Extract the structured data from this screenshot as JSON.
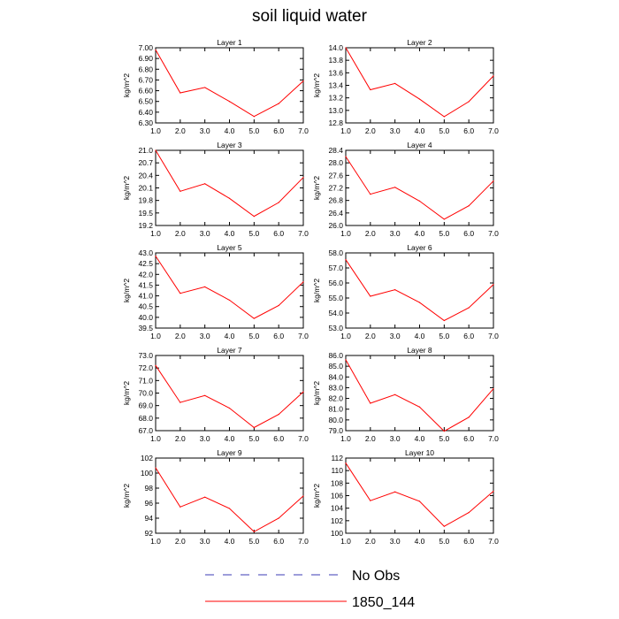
{
  "figure": {
    "title": "soil liquid water",
    "colors": {
      "series": "#ff0000",
      "legend_obs": "#3b3bb4",
      "axis": "#000000"
    }
  },
  "legend": [
    {
      "label": "No Obs",
      "style": "dashed",
      "color": "#3b3bb4"
    },
    {
      "label": "1850_144",
      "style": "solid",
      "color": "#ff0000"
    }
  ],
  "chart_data": [
    {
      "type": "line",
      "title": "Layer 1",
      "ylabel": "kg/m^2",
      "x": [
        1,
        2,
        3,
        4,
        5,
        6,
        7
      ],
      "xlim": [
        1,
        7
      ],
      "xticks": [
        "1.0",
        "2.0",
        "3.0",
        "4.0",
        "5.0",
        "6.0",
        "7.0"
      ],
      "ylim": [
        6.3,
        7.0
      ],
      "yticks": [
        "6.30",
        "6.40",
        "6.50",
        "6.60",
        "6.70",
        "6.80",
        "6.90",
        "7.00"
      ],
      "series": [
        {
          "name": "1850_144",
          "values": [
            6.98,
            6.58,
            6.63,
            6.5,
            6.36,
            6.48,
            6.69
          ]
        }
      ]
    },
    {
      "type": "line",
      "title": "Layer 2",
      "ylabel": "kg/m^2",
      "x": [
        1,
        2,
        3,
        4,
        5,
        6,
        7
      ],
      "xlim": [
        1,
        7
      ],
      "xticks": [
        "1.0",
        "2.0",
        "3.0",
        "4.0",
        "5.0",
        "6.0",
        "7.0"
      ],
      "ylim": [
        12.8,
        14.0
      ],
      "yticks": [
        "12.8",
        "13.0",
        "13.2",
        "13.4",
        "13.6",
        "13.8",
        "14.0"
      ],
      "series": [
        {
          "name": "1850_144",
          "values": [
            14.0,
            13.33,
            13.43,
            13.18,
            12.9,
            13.14,
            13.55
          ]
        }
      ]
    },
    {
      "type": "line",
      "title": "Layer 3",
      "ylabel": "kg/m^2",
      "x": [
        1,
        2,
        3,
        4,
        5,
        6,
        7
      ],
      "xlim": [
        1,
        7
      ],
      "xticks": [
        "1.0",
        "2.0",
        "3.0",
        "4.0",
        "5.0",
        "6.0",
        "7.0"
      ],
      "ylim": [
        19.2,
        21.0
      ],
      "yticks": [
        "19.2",
        "19.5",
        "19.8",
        "20.1",
        "20.4",
        "20.7",
        "21.0"
      ],
      "series": [
        {
          "name": "1850_144",
          "values": [
            21.0,
            20.02,
            20.2,
            19.85,
            19.42,
            19.75,
            20.35
          ]
        }
      ]
    },
    {
      "type": "line",
      "title": "Layer 4",
      "ylabel": "kg/m^2",
      "x": [
        1,
        2,
        3,
        4,
        5,
        6,
        7
      ],
      "xlim": [
        1,
        7
      ],
      "xticks": [
        "1.0",
        "2.0",
        "3.0",
        "4.0",
        "5.0",
        "6.0",
        "7.0"
      ],
      "ylim": [
        26.0,
        28.4
      ],
      "yticks": [
        "26.0",
        "26.4",
        "26.8",
        "27.2",
        "27.6",
        "28.0",
        "28.4"
      ],
      "series": [
        {
          "name": "1850_144",
          "values": [
            28.2,
            27.0,
            27.22,
            26.78,
            26.2,
            26.63,
            27.42
          ]
        }
      ]
    },
    {
      "type": "line",
      "title": "Layer 5",
      "ylabel": "kg/m^2",
      "x": [
        1,
        2,
        3,
        4,
        5,
        6,
        7
      ],
      "xlim": [
        1,
        7
      ],
      "xticks": [
        "1.0",
        "2.0",
        "3.0",
        "4.0",
        "5.0",
        "6.0",
        "7.0"
      ],
      "ylim": [
        39.5,
        43.0
      ],
      "yticks": [
        "39.5",
        "40.0",
        "40.5",
        "41.0",
        "41.5",
        "42.0",
        "42.5",
        "43.0"
      ],
      "series": [
        {
          "name": "1850_144",
          "values": [
            42.85,
            41.12,
            41.42,
            40.8,
            39.95,
            40.55,
            41.65
          ]
        }
      ]
    },
    {
      "type": "line",
      "title": "Layer 6",
      "ylabel": "kg/m^2",
      "x": [
        1,
        2,
        3,
        4,
        5,
        6,
        7
      ],
      "xlim": [
        1,
        7
      ],
      "xticks": [
        "1.0",
        "2.0",
        "3.0",
        "4.0",
        "5.0",
        "6.0",
        "7.0"
      ],
      "ylim": [
        53.0,
        58.0
      ],
      "yticks": [
        "53.0",
        "54.0",
        "55.0",
        "56.0",
        "57.0",
        "58.0"
      ],
      "series": [
        {
          "name": "1850_144",
          "values": [
            57.55,
            55.12,
            55.55,
            54.7,
            53.5,
            54.35,
            55.9
          ]
        }
      ]
    },
    {
      "type": "line",
      "title": "Layer 7",
      "ylabel": "kg/m^2",
      "x": [
        1,
        2,
        3,
        4,
        5,
        6,
        7
      ],
      "xlim": [
        1,
        7
      ],
      "xticks": [
        "1.0",
        "2.0",
        "3.0",
        "4.0",
        "5.0",
        "6.0",
        "7.0"
      ],
      "ylim": [
        67.0,
        73.0
      ],
      "yticks": [
        "67.0",
        "68.0",
        "69.0",
        "70.0",
        "71.0",
        "72.0",
        "73.0"
      ],
      "series": [
        {
          "name": "1850_144",
          "values": [
            72.2,
            69.25,
            69.8,
            68.8,
            67.25,
            68.3,
            70.1
          ]
        }
      ]
    },
    {
      "type": "line",
      "title": "Layer 8",
      "ylabel": "kg/m^2",
      "x": [
        1,
        2,
        3,
        4,
        5,
        6,
        7
      ],
      "xlim": [
        1,
        7
      ],
      "xticks": [
        "1.0",
        "2.0",
        "3.0",
        "4.0",
        "5.0",
        "6.0",
        "7.0"
      ],
      "ylim": [
        79.0,
        86.0
      ],
      "yticks": [
        "79.0",
        "80.0",
        "81.0",
        "82.0",
        "83.0",
        "84.0",
        "85.0",
        "86.0"
      ],
      "series": [
        {
          "name": "1850_144",
          "values": [
            85.6,
            81.55,
            82.35,
            81.2,
            78.95,
            80.25,
            82.9
          ]
        }
      ]
    },
    {
      "type": "line",
      "title": "Layer 9",
      "ylabel": "kg/m^2",
      "x": [
        1,
        2,
        3,
        4,
        5,
        6,
        7
      ],
      "xlim": [
        1,
        7
      ],
      "xticks": [
        "1.0",
        "2.0",
        "3.0",
        "4.0",
        "5.0",
        "6.0",
        "7.0"
      ],
      "ylim": [
        92,
        102
      ],
      "yticks": [
        "92",
        "94",
        "96",
        "98",
        "100",
        "102"
      ],
      "series": [
        {
          "name": "1850_144",
          "values": [
            100.7,
            95.5,
            96.8,
            95.3,
            92.2,
            94.0,
            96.95
          ]
        }
      ]
    },
    {
      "type": "line",
      "title": "Layer 10",
      "ylabel": "kg/m^2",
      "x": [
        1,
        2,
        3,
        4,
        5,
        6,
        7
      ],
      "xlim": [
        1,
        7
      ],
      "xticks": [
        "1.0",
        "2.0",
        "3.0",
        "4.0",
        "5.0",
        "6.0",
        "7.0"
      ],
      "ylim": [
        100,
        112
      ],
      "yticks": [
        "100",
        "102",
        "104",
        "106",
        "108",
        "110",
        "112"
      ],
      "series": [
        {
          "name": "1850_144",
          "values": [
            111.2,
            105.2,
            106.6,
            105.1,
            101.1,
            103.3,
            106.7
          ]
        }
      ]
    }
  ]
}
